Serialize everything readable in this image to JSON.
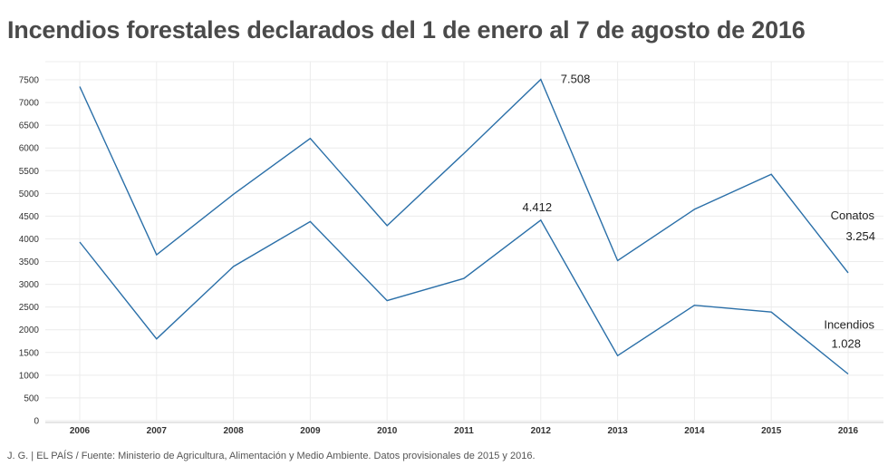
{
  "title": "Incendios forestales declarados del 1 de enero al 7 de agosto de 2016",
  "source": "J. G. | EL PAÍS / Fuente: Ministerio de Agricultura, Alimentación y Medio Ambiente. Datos provisionales de 2015 y 2016.",
  "colors": {
    "line": "#2a6fa8",
    "grid": "#ececec",
    "axis": "#cccccc"
  },
  "chart_data": {
    "type": "line",
    "title": "Incendios forestales declarados del 1 de enero al 7 de agosto de 2016",
    "x": [
      "2006",
      "2007",
      "2008",
      "2009",
      "2010",
      "2011",
      "2012",
      "2013",
      "2014",
      "2015",
      "2016"
    ],
    "series": [
      {
        "name": "Conatos",
        "values": [
          7350,
          3650,
          4980,
          6210,
          4290,
          5880,
          7508,
          3520,
          4650,
          5420,
          3254
        ]
      },
      {
        "name": "Incendios",
        "values": [
          3930,
          1800,
          3390,
          4380,
          2640,
          3130,
          4412,
          1430,
          2540,
          2390,
          1028
        ]
      }
    ],
    "ylim": [
      0,
      7500
    ],
    "yticks": [
      "0",
      "500",
      "1000",
      "1500",
      "2000",
      "2500",
      "3000",
      "3500",
      "4000",
      "4500",
      "5000",
      "5500",
      "6000",
      "6500",
      "7000",
      "7500"
    ],
    "grid": true,
    "annotations": [
      {
        "text": "7.508",
        "series": "Conatos",
        "x": "2012",
        "value": 7508
      },
      {
        "text": "4.412",
        "series": "Incendios",
        "x": "2012",
        "value": 4412
      },
      {
        "text": "Conatos",
        "series": "Conatos",
        "x": "2016"
      },
      {
        "text": "3.254",
        "series": "Conatos",
        "x": "2016",
        "value": 3254
      },
      {
        "text": "Incendios",
        "series": "Incendios",
        "x": "2016"
      },
      {
        "text": "1.028",
        "series": "Incendios",
        "x": "2016",
        "value": 1028
      }
    ]
  }
}
